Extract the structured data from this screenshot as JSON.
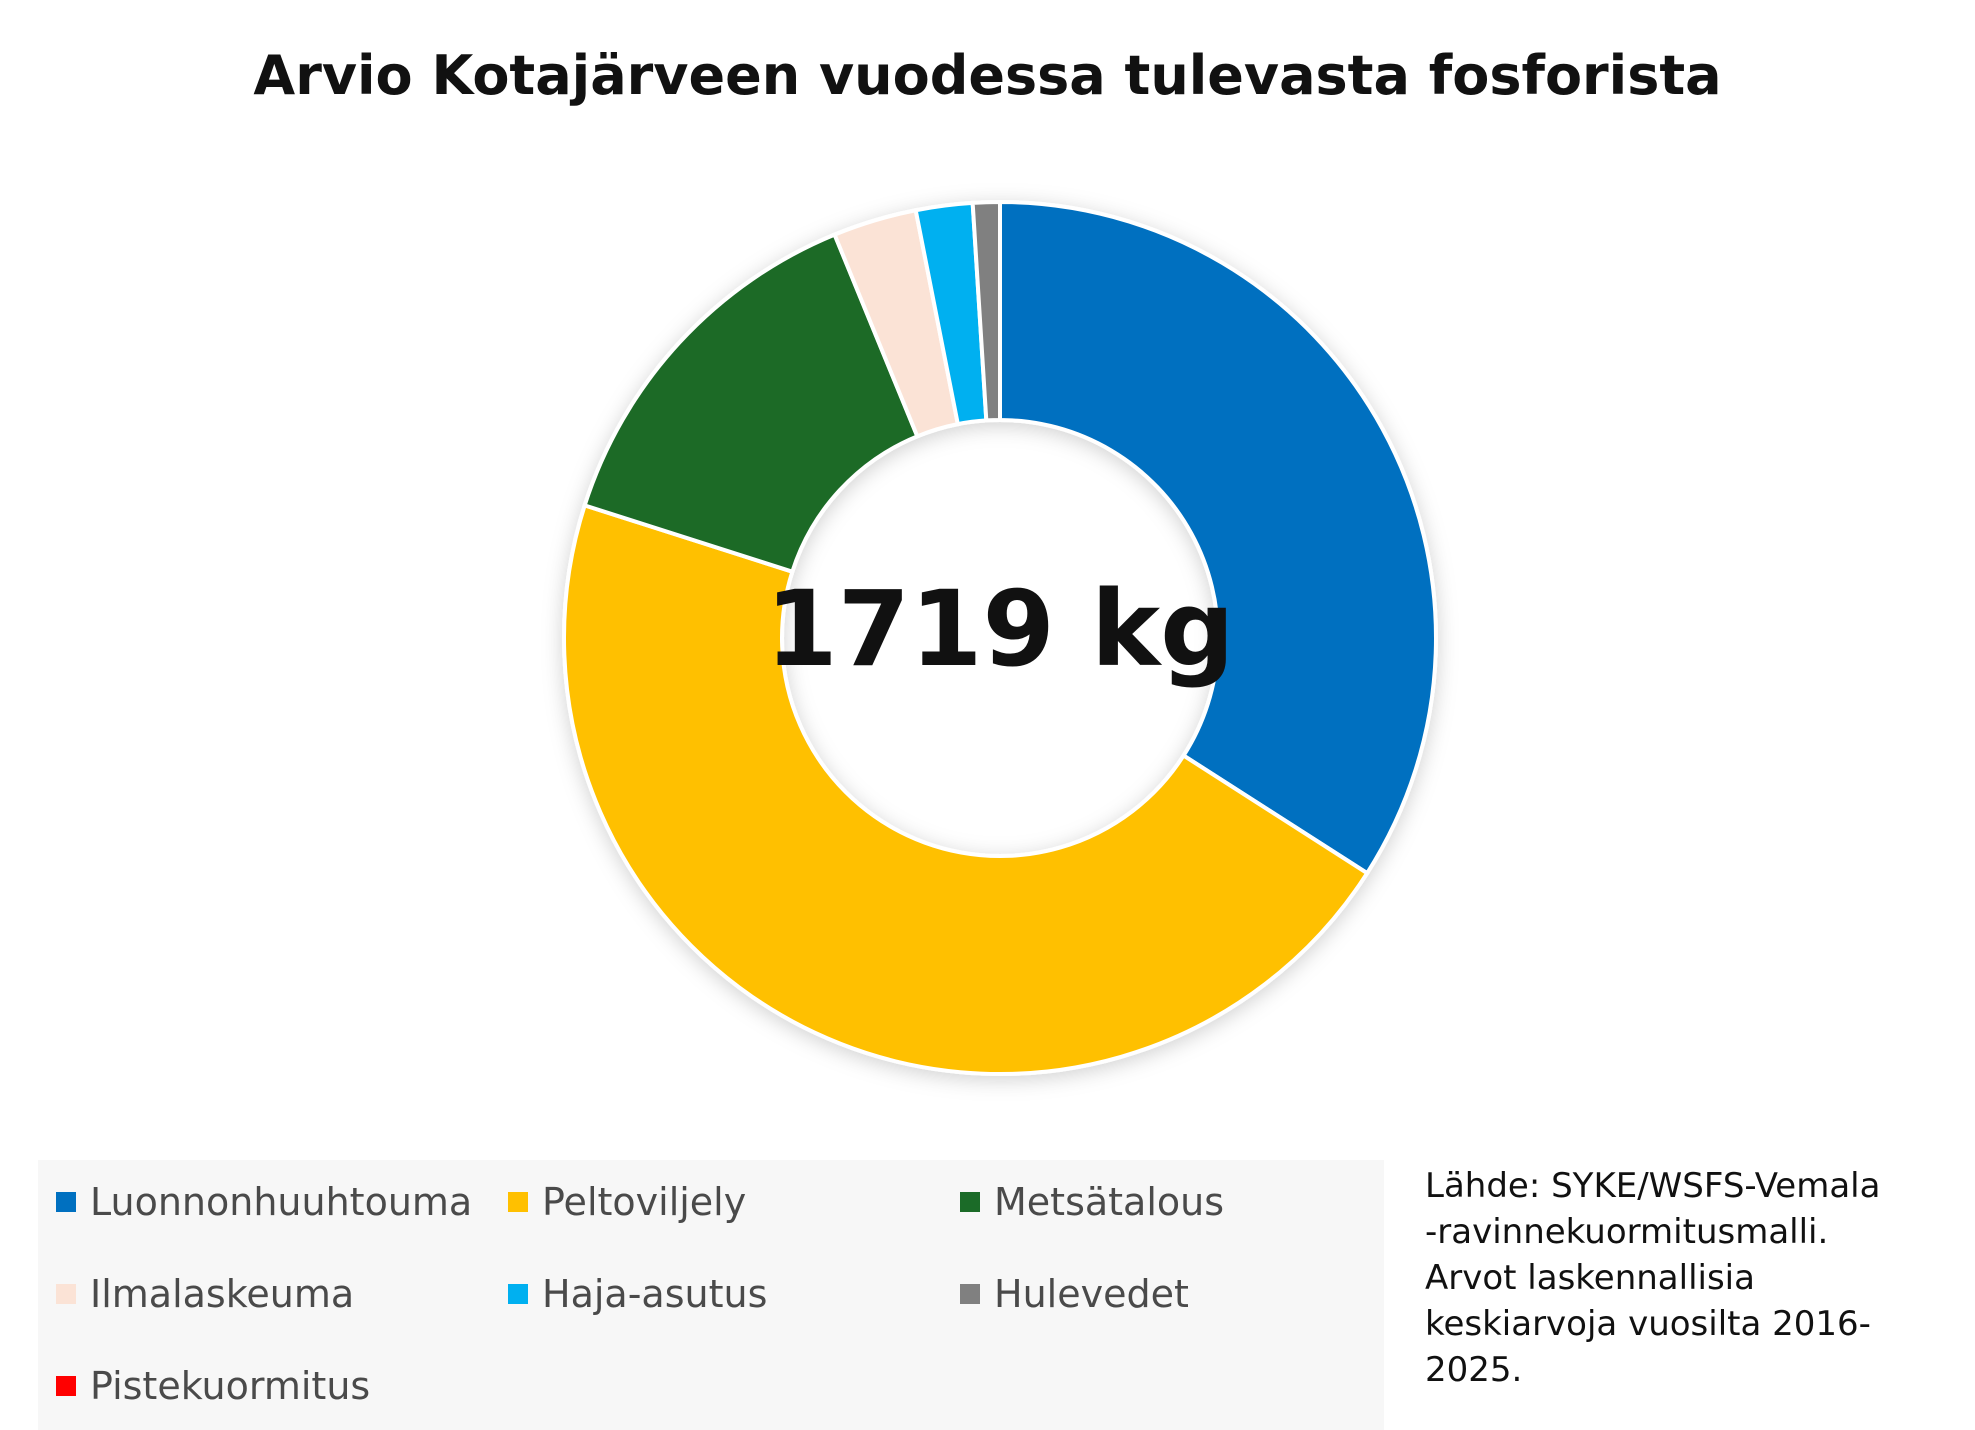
{
  "title": "Arvio Kotajärveen vuodessa tulevasta fosforista",
  "center_label": "1719 kg",
  "source_lines": [
    "Lähde: SYKE/WSFS-Vemala",
    "-ravinnekuormitusmalli.",
    "Arvot laskennallisia",
    "keskiarvoja vuosilta 2016-",
    "2025."
  ],
  "chart_data": {
    "type": "pie",
    "variant": "donut",
    "title": "Arvio Kotajärveen vuodessa tulevasta fosforista",
    "total_label": "1719 kg",
    "legend_position": "bottom",
    "categories": [
      "Luonnonhuuhtouma",
      "Peltoviljely",
      "Metsätalous",
      "Ilmalaskeuma",
      "Haja-asutus",
      "Hulevedet",
      "Pistekuormitus"
    ],
    "values": [
      34.1,
      45.9,
      13.9,
      3.1,
      2.1,
      1.0,
      0.0
    ],
    "colors": [
      "#0070c0",
      "#ffc000",
      "#1b6b28",
      "#fbe3d6",
      "#00b0f0",
      "#808080",
      "#ff0000"
    ]
  }
}
